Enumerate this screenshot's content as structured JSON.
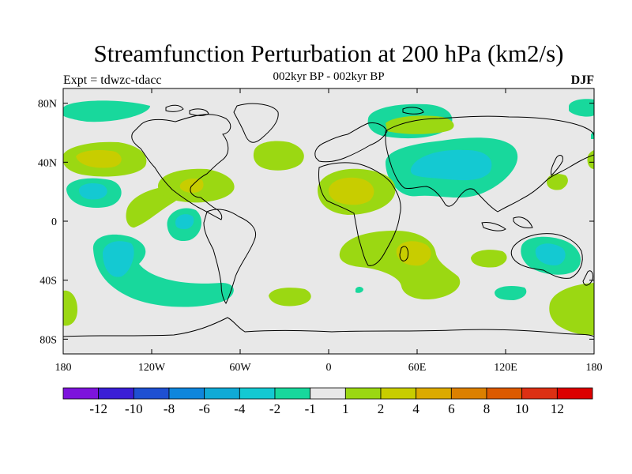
{
  "header": {
    "title": "Streamfunction Perturbation at 200 hPa (km2/s)",
    "subtitle": "002kyr BP - 002kyr BP",
    "left_label": "Expt = tdwzc-tdacc",
    "right_label": "DJF"
  },
  "axes": {
    "x_ticks": [
      {
        "value": -180,
        "label": "180"
      },
      {
        "value": -120,
        "label": "120W"
      },
      {
        "value": -60,
        "label": "60W"
      },
      {
        "value": 0,
        "label": "0"
      },
      {
        "value": 60,
        "label": "60E"
      },
      {
        "value": 120,
        "label": "120E"
      },
      {
        "value": 180,
        "label": "180"
      }
    ],
    "y_ticks": [
      {
        "value": 80,
        "label": "80N"
      },
      {
        "value": 40,
        "label": "40N"
      },
      {
        "value": 0,
        "label": "0"
      },
      {
        "value": -40,
        "label": "40S"
      },
      {
        "value": -80,
        "label": "80S"
      }
    ],
    "lon_range": [
      -180,
      180
    ],
    "lat_range": [
      -90,
      90
    ]
  },
  "colorbar": {
    "colors": [
      "#7d14dc",
      "#3a1ed6",
      "#1e50d2",
      "#0f86dc",
      "#10aad6",
      "#14c9d2",
      "#18d89c",
      "#e8e8e8",
      "#9bd812",
      "#c8cd00",
      "#dcaa00",
      "#dc8000",
      "#dc5a00",
      "#dc3014",
      "#dc0000"
    ],
    "labels": [
      "-12",
      "-10",
      "-8",
      "-6",
      "-4",
      "-2",
      "-1",
      "1",
      "2",
      "4",
      "6",
      "8",
      "10",
      "12"
    ]
  },
  "chart_data": {
    "type": "heatmap",
    "title": "Streamfunction Perturbation at 200 hPa (km2/s)",
    "subtitle": "002kyr BP - 002kyr BP",
    "season": "DJF",
    "xlim": [
      -180,
      180
    ],
    "ylim": [
      -90,
      90
    ],
    "levels": [
      -12,
      -10,
      -8,
      -6,
      -4,
      -2,
      -1,
      1,
      2,
      4,
      6,
      8,
      10,
      12
    ],
    "features": [
      {
        "name": "N Pacific high",
        "lon": -155,
        "lat": 42,
        "value": 2,
        "peak": 4
      },
      {
        "name": "Subtropical N Pacific low",
        "lon": -160,
        "lat": 22,
        "value": -1,
        "peak": -2
      },
      {
        "name": "E Pacific/Mexico ridge",
        "lon": -115,
        "lat": 12,
        "value": 1
      },
      {
        "name": "Gulf of Mexico high",
        "lon": -82,
        "lat": 24,
        "value": 2,
        "peak": 4
      },
      {
        "name": "Equatorial E Pacific low",
        "lon": -98,
        "lat": -3,
        "value": -1,
        "peak": -2
      },
      {
        "name": "Central N Atlantic high",
        "lon": -35,
        "lat": 47,
        "value": 1
      },
      {
        "name": "Arctic Canada low",
        "lon": -150,
        "lat": 80,
        "value": -1
      },
      {
        "name": "Greenland Sea low",
        "lon": 35,
        "lat": 74,
        "value": -1
      },
      {
        "name": "N Africa high",
        "lon": 17,
        "lat": 22,
        "value": 2,
        "peak": 4
      },
      {
        "name": "Central Asia low",
        "lon": 85,
        "lat": 40,
        "value": -1,
        "peak": -2
      },
      {
        "name": "Siberia ridge",
        "lon": 70,
        "lat": 66,
        "value": 1
      },
      {
        "name": "S Pacific low",
        "lon": -148,
        "lat": -27,
        "value": -1,
        "peak": -2
      },
      {
        "name": "S Pacific trough arc",
        "lon": -105,
        "lat": -43,
        "value": -1
      },
      {
        "name": "S Africa high",
        "lon": 42,
        "lat": -23,
        "value": 2,
        "peak": 4
      },
      {
        "name": "Australia low",
        "lon": 140,
        "lat": -28,
        "value": -1,
        "peak": -2
      },
      {
        "name": "S Indian Ocean low",
        "lon": 125,
        "lat": -46,
        "value": -1
      },
      {
        "name": "SW Pacific high",
        "lon": 170,
        "lat": -60,
        "value": 1
      }
    ]
  }
}
